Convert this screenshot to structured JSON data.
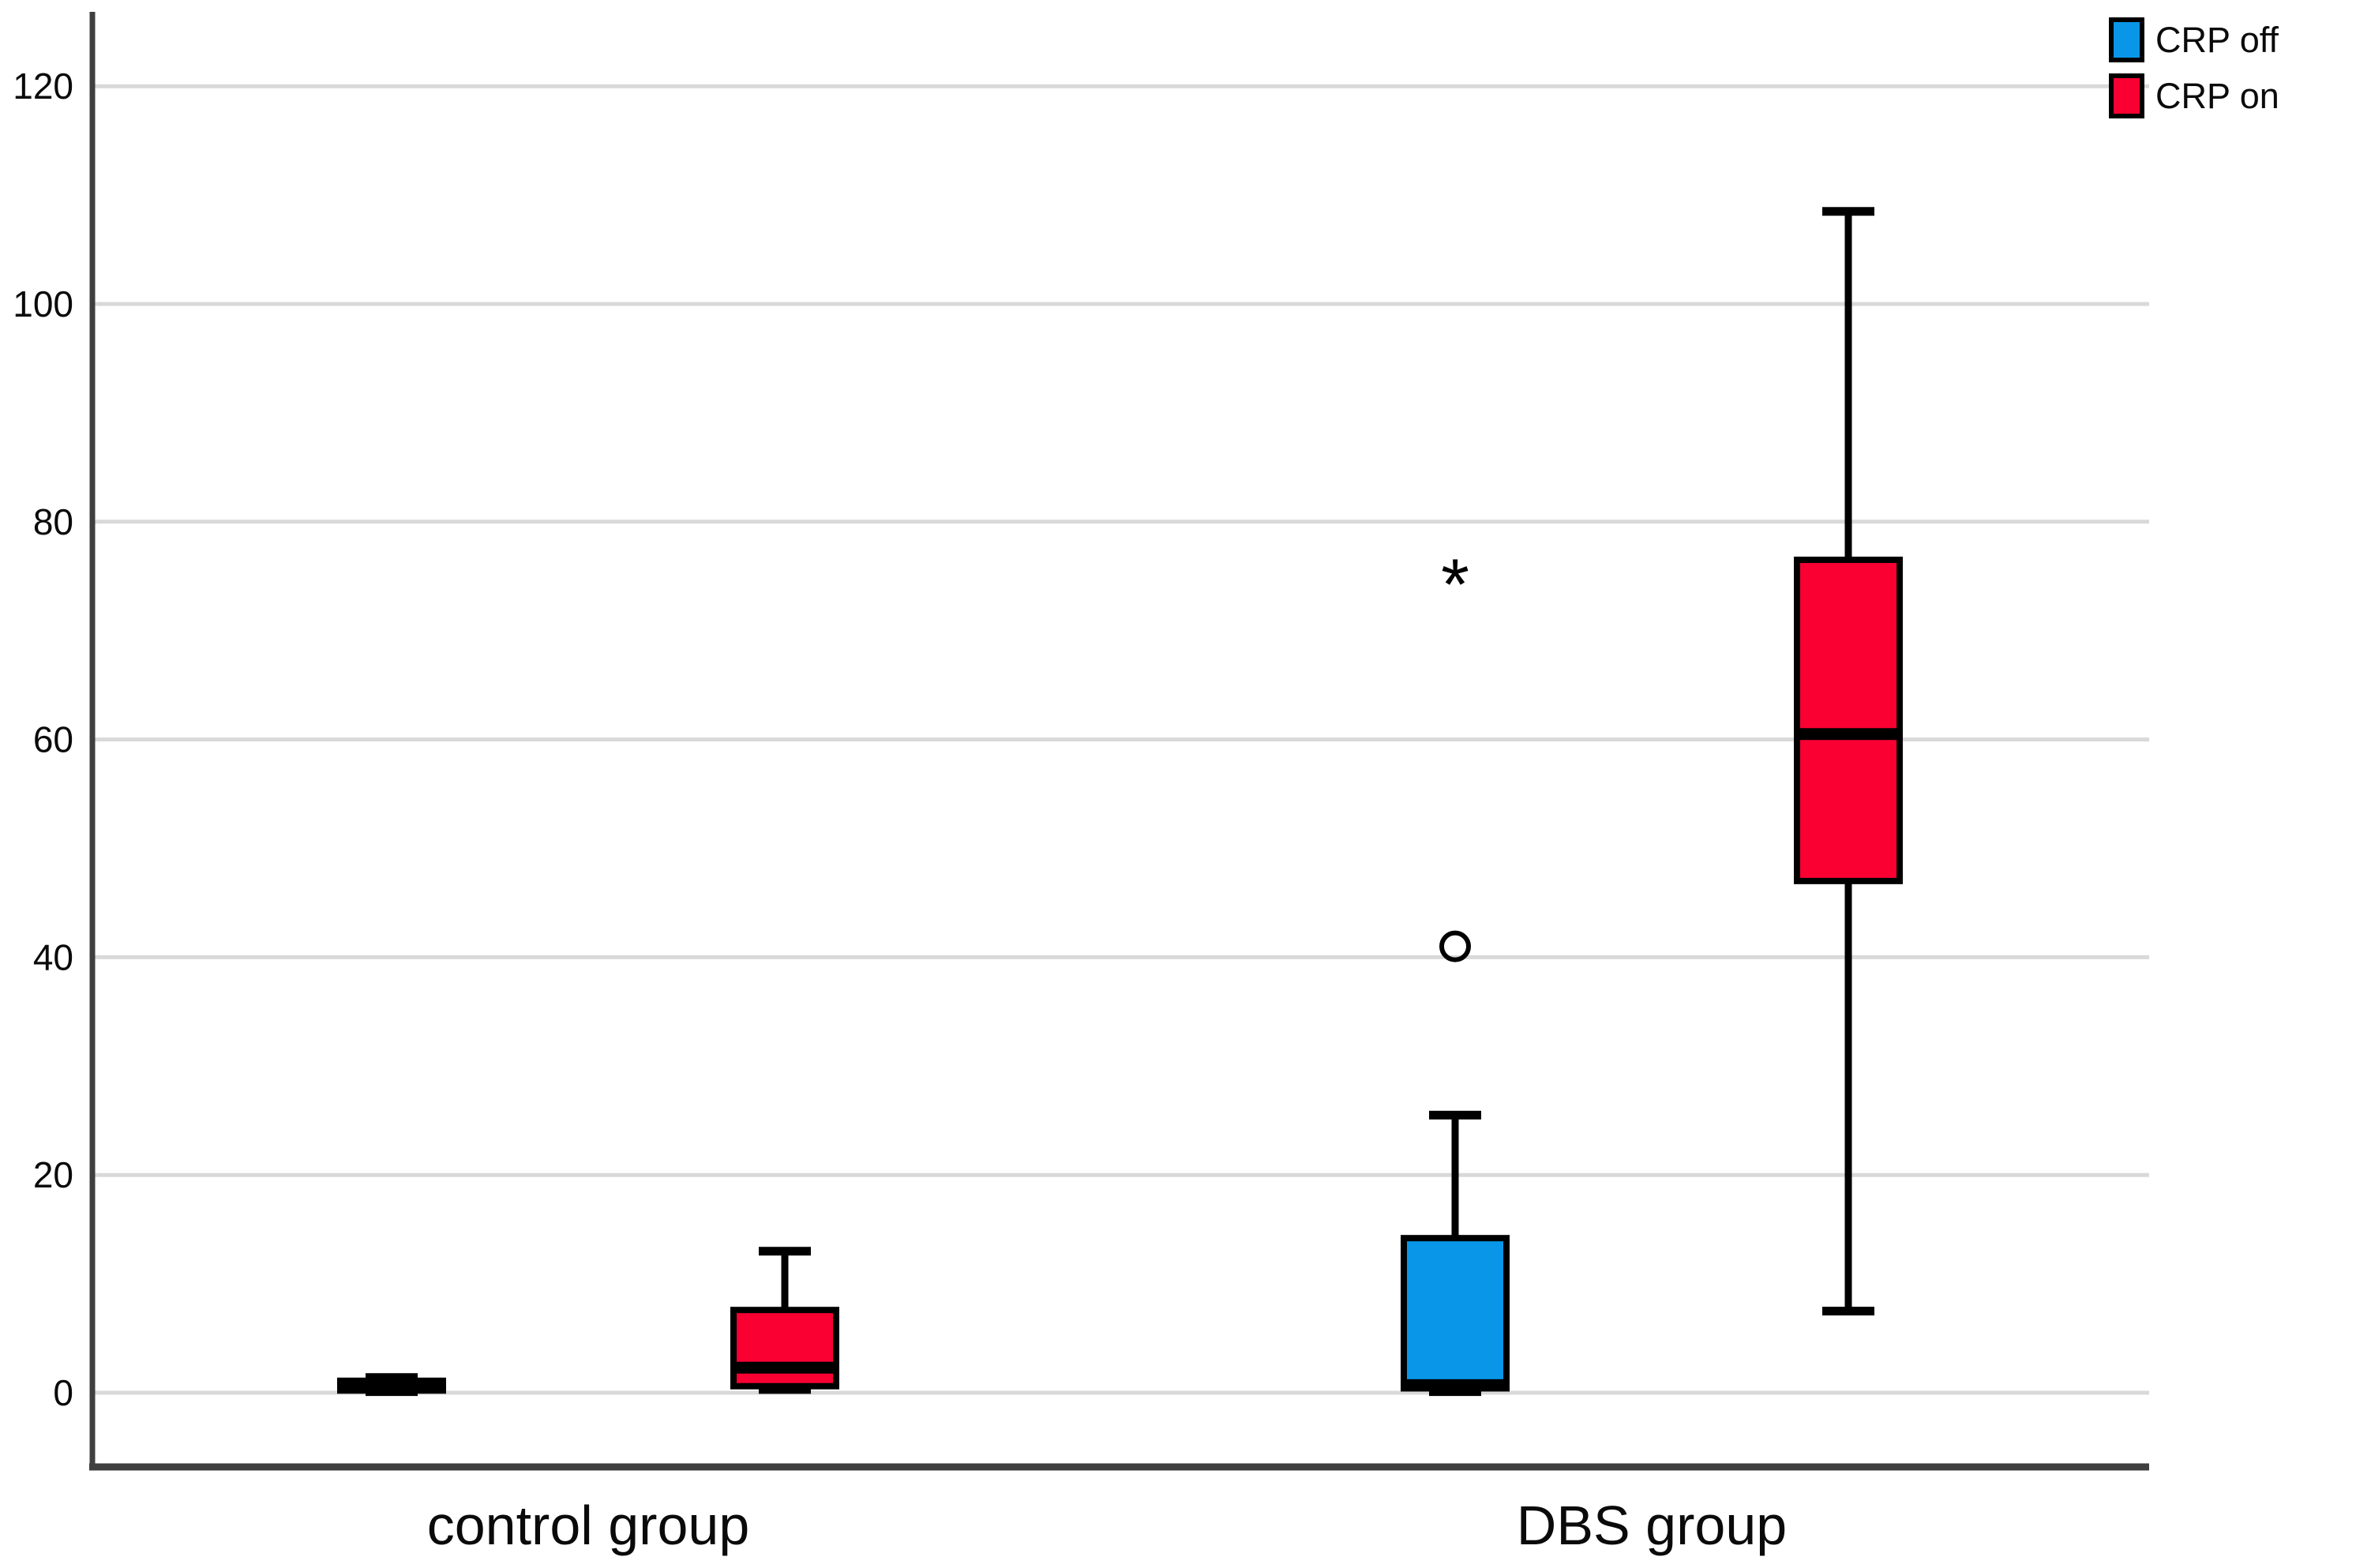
{
  "chart_data": {
    "type": "boxplot",
    "title": "",
    "categories": [
      "control group",
      "DBS group"
    ],
    "series": [
      {
        "name": "CRP off",
        "color": "#0996E8",
        "boxes": [
          {
            "category": "control group",
            "min": 0.1,
            "q1": 0.2,
            "median": 0.6,
            "q3": 1.1,
            "max": 1.4,
            "outliers": [],
            "extremes": []
          },
          {
            "category": "DBS group",
            "min": 0.1,
            "q1": 0.4,
            "median": 0.7,
            "q3": 14.2,
            "max": 25.5,
            "outliers": [
              41
            ],
            "extremes": [
              76
            ]
          }
        ]
      },
      {
        "name": "CRP on",
        "color": "#FA0032",
        "boxes": [
          {
            "category": "control group",
            "min": 0.3,
            "q1": 0.6,
            "median": 2.3,
            "q3": 7.6,
            "max": 13,
            "outliers": [],
            "extremes": []
          },
          {
            "category": "DBS group",
            "min": 7.5,
            "q1": 47,
            "median": 60.5,
            "q3": 76.5,
            "max": 108.5,
            "outliers": [],
            "extremes": []
          }
        ]
      }
    ],
    "y_axis": {
      "min": -7,
      "max": 127,
      "ticks": [
        0,
        20,
        40,
        60,
        80,
        100,
        120
      ],
      "grid": true,
      "label": ""
    },
    "x_axis": {
      "label": ""
    },
    "legend": {
      "position": "top-right"
    },
    "outlier_marker": "circle",
    "extreme_marker": "*"
  },
  "colors": {
    "grid": "#D9D9D9",
    "axis": "#3F3F3F",
    "box_outline": "#000000",
    "text": "#0A0A0A",
    "background": "#FFFFFF"
  }
}
